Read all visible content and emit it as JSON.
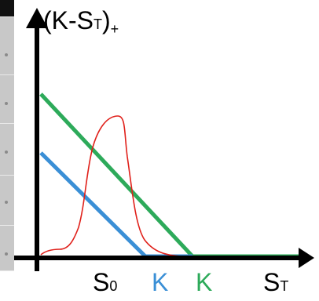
{
  "labels": {
    "y_axis_main": "(K-S",
    "y_axis_sub": "T",
    "y_axis_close": ")",
    "y_axis_plus": "+",
    "x_axis_main": "S",
    "x_axis_sub": "T",
    "s0_main": "S",
    "s0_sub": "0",
    "k_blue": "K",
    "k_green": "K"
  },
  "colors": {
    "axis": "#000000",
    "payoff_blue": "#3a8fd6",
    "payoff_green": "#2daa5a",
    "density": "#e0201a",
    "strip": "#c8c8c8"
  },
  "chart_data": {
    "type": "line",
    "series": [
      {
        "color": "blue",
        "description_key": "k_blue"
      },
      {
        "color": "green",
        "description_key": "k_green"
      }
    ]
  }
}
